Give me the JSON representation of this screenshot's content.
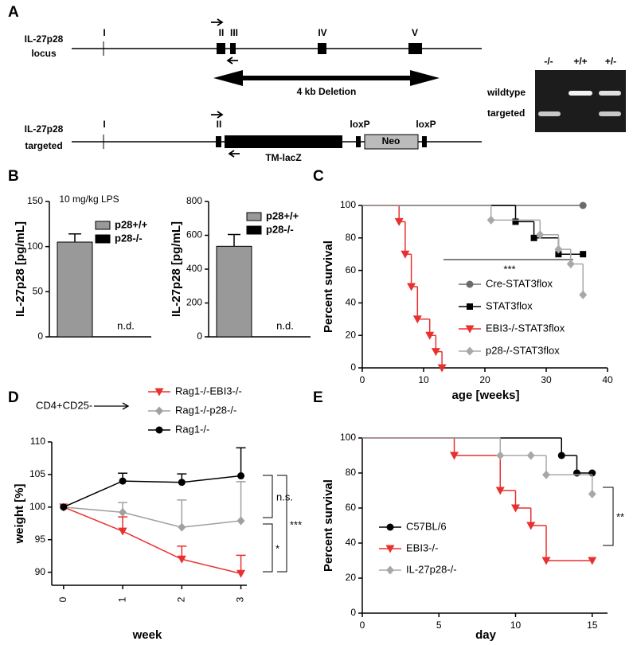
{
  "panels": [
    "A",
    "B",
    "C",
    "D",
    "E"
  ],
  "locus_diagram": {
    "locus": {
      "label_lines": [
        "IL-27p28",
        "locus"
      ],
      "exon_labels": [
        "I",
        "II",
        "III",
        "IV",
        "V"
      ],
      "deletion": "4 kb Deletion"
    },
    "targeted": {
      "label_lines": [
        "IL-27p28",
        "targeted"
      ],
      "exon_labels": [
        "I",
        "II"
      ],
      "elements": [
        "TM-lacZ",
        "loxP",
        "Neo",
        "loxP"
      ]
    }
  },
  "gel": {
    "lanes": [
      "-/-",
      "+/+",
      "+/-"
    ],
    "bands": [
      "wildtype",
      "targeted"
    ]
  },
  "chart_data": [
    {
      "type": "bar",
      "title": "10 mg/kg LPS",
      "y_label": "IL-27p28 [pg/mL]",
      "categories": [
        null,
        null
      ],
      "ylim": [
        0,
        150
      ],
      "yticks": [
        0,
        50,
        100,
        150
      ],
      "series": [
        {
          "name": "p28+/+",
          "color": "#999999",
          "values": [
            105,
            null
          ],
          "errors": [
            9,
            null
          ]
        },
        {
          "name": "p28-/-",
          "color": "#000000",
          "values": [
            null,
            null
          ],
          "value_labels": [
            null,
            "n.d."
          ]
        }
      ]
    },
    {
      "type": "bar",
      "y_label": "IL-27p28 [pg/mL]",
      "categories": [
        null,
        null
      ],
      "ylim": [
        0,
        800
      ],
      "yticks": [
        0,
        200,
        400,
        600,
        800
      ],
      "series": [
        {
          "name": "p28+/+",
          "color": "#999999",
          "values": [
            535,
            null
          ],
          "errors": [
            70,
            null
          ]
        },
        {
          "name": "p28-/-",
          "color": "#000000",
          "values": [
            null,
            null
          ],
          "value_labels": [
            null,
            "n.d."
          ]
        }
      ]
    },
    {
      "type": "step",
      "x_label": "age [weeks]",
      "y_label": "Percent survival",
      "xlim": [
        0,
        40
      ],
      "xticks": [
        0,
        10,
        20,
        30,
        40
      ],
      "ylim": [
        0,
        100
      ],
      "yticks": [
        0,
        20,
        40,
        60,
        80,
        100
      ],
      "annotations": [
        "***"
      ],
      "series": [
        {
          "name": "Cre-STAT3flox",
          "color": "#6b6b6b",
          "marker": "circle",
          "x": [
            0,
            36
          ],
          "values": [
            100,
            100
          ]
        },
        {
          "name": "STAT3flox",
          "color": "#000000",
          "marker": "square",
          "x": [
            0,
            25,
            28,
            32,
            36
          ],
          "values": [
            100,
            90,
            80,
            70,
            70
          ]
        },
        {
          "name": "EBI3-/-STAT3flox",
          "color": "#e8312f",
          "marker": "triangle",
          "x": [
            0,
            6,
            7,
            8,
            9,
            11,
            12,
            13
          ],
          "values": [
            100,
            90,
            70,
            50,
            30,
            20,
            10,
            0
          ]
        },
        {
          "name": "p28-/-STAT3flox",
          "color": "#a8a8a8",
          "marker": "diamond",
          "x": [
            0,
            21,
            29,
            32,
            34,
            36
          ],
          "values": [
            100,
            91,
            82,
            73,
            64,
            45
          ]
        }
      ]
    },
    {
      "type": "line",
      "x_label": "week",
      "y_label": "weight [%]",
      "x": [
        0,
        1,
        2,
        3
      ],
      "xlim": [
        -0.2,
        3.1
      ],
      "xticks": [
        0,
        1,
        2,
        3
      ],
      "ylim": [
        88,
        110
      ],
      "yticks": [
        90,
        95,
        100,
        105,
        110
      ],
      "annotations": [
        "CD4+CD25-",
        "n.s.",
        "*",
        "***"
      ],
      "series": [
        {
          "name": "Rag1-/-EBI3-/-",
          "color": "#e8312f",
          "marker": "triangle",
          "values": [
            100,
            96.3,
            92,
            89.8
          ],
          "errors": [
            null,
            2.2,
            2,
            2.8
          ]
        },
        {
          "name": "Rag1-/-p28-/-",
          "color": "#a0a0a0",
          "marker": "diamond",
          "values": [
            100,
            99.2,
            96.9,
            97.9
          ],
          "errors": [
            null,
            1.5,
            4.2,
            6
          ]
        },
        {
          "name": "Rag1-/-",
          "color": "#000000",
          "marker": "circle",
          "values": [
            100,
            104,
            103.8,
            104.8
          ],
          "errors": [
            null,
            1.2,
            1.3,
            4.3
          ]
        }
      ]
    },
    {
      "type": "step",
      "x_label": "day",
      "y_label": "Percent survival",
      "xlim": [
        0,
        16
      ],
      "xticks": [
        0,
        5,
        10,
        15
      ],
      "ylim": [
        0,
        100
      ],
      "yticks": [
        0,
        20,
        40,
        60,
        80,
        100
      ],
      "annotations": [
        "**"
      ],
      "series": [
        {
          "name": "C57BL/6",
          "color": "#000000",
          "marker": "circle",
          "x": [
            0,
            13,
            14,
            15
          ],
          "values": [
            100,
            90,
            80,
            80
          ]
        },
        {
          "name": "EBI3-/-",
          "color": "#e8312f",
          "marker": "triangle",
          "x": [
            0,
            6,
            9,
            10,
            11,
            12,
            15
          ],
          "values": [
            100,
            90,
            70,
            60,
            50,
            30,
            30
          ]
        },
        {
          "name": "IL-27p28-/-",
          "color": "#a8a8a8",
          "marker": "diamond",
          "x": [
            0,
            9,
            11,
            12,
            15
          ],
          "values": [
            100,
            90,
            90,
            79,
            68
          ]
        }
      ]
    }
  ]
}
